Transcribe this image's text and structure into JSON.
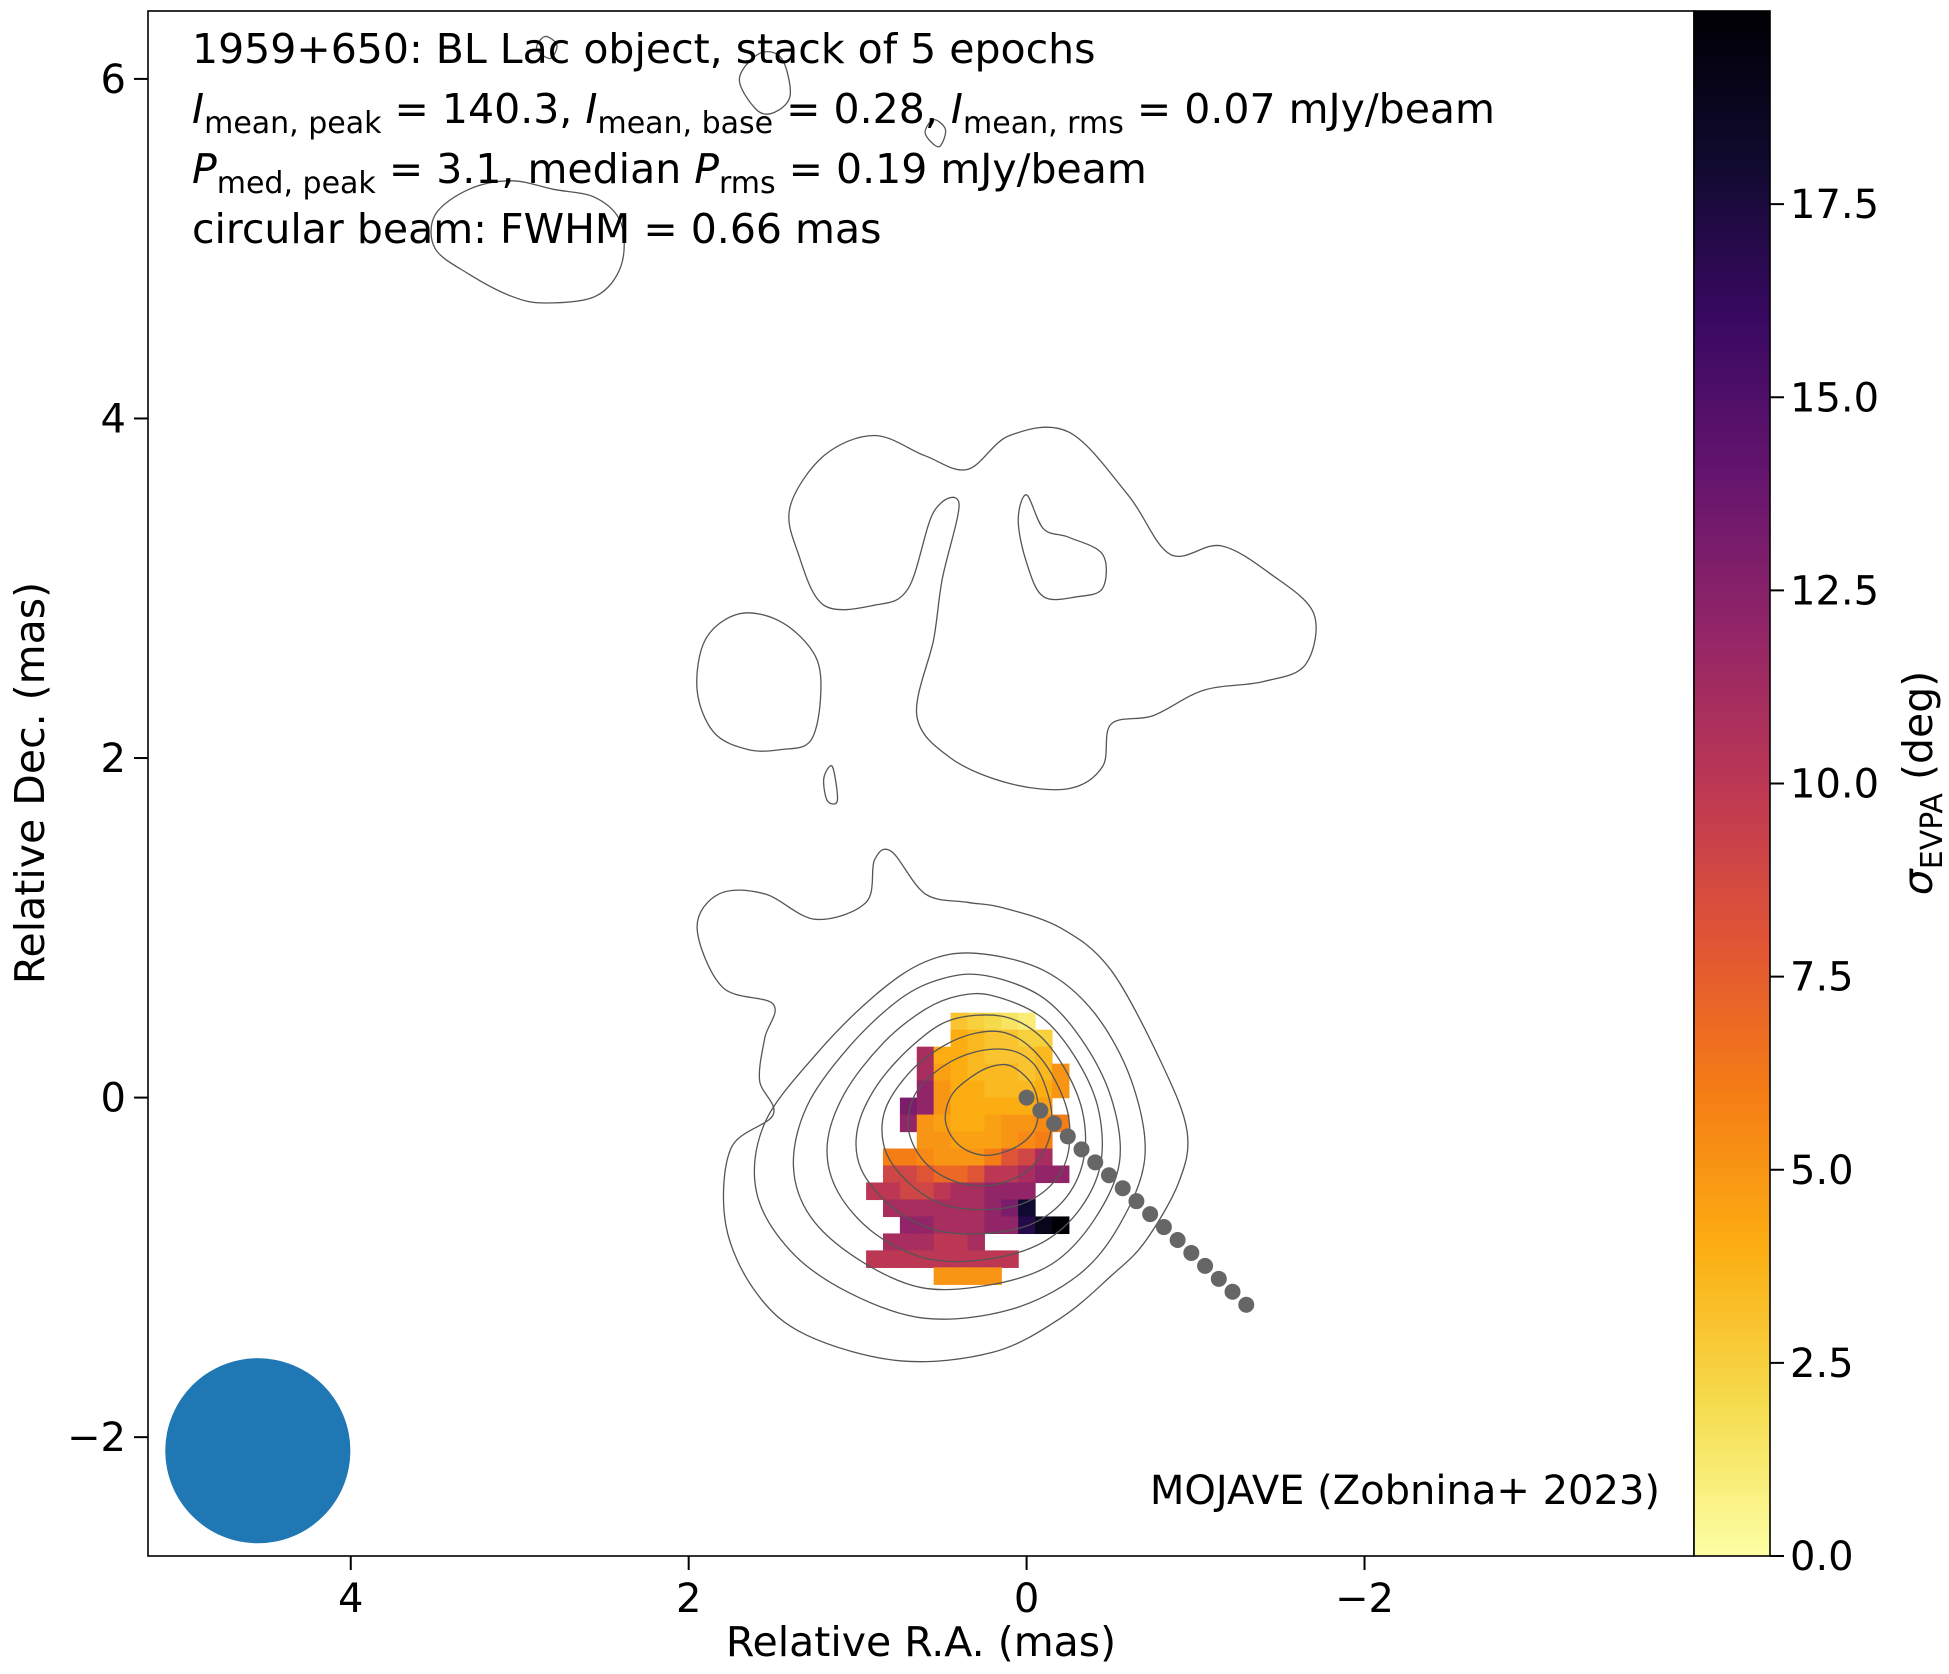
{
  "chart_data": {
    "type": "heatmap",
    "title_lines": [
      {
        "parts": [
          {
            "t": "1959+650: BL Lac object, stack of 5 epochs"
          }
        ]
      },
      {
        "parts": [
          {
            "t": "I",
            "it": true
          },
          {
            "t": "mean, peak",
            "sub": true
          },
          {
            "t": " = 140.3, "
          },
          {
            "t": "I",
            "it": true
          },
          {
            "t": "mean, base",
            "sub": true
          },
          {
            "t": " = 0.28, "
          },
          {
            "t": "I",
            "it": true
          },
          {
            "t": "mean, rms",
            "sub": true
          },
          {
            "t": " = 0.07 mJy/beam"
          }
        ]
      },
      {
        "parts": [
          {
            "t": "P",
            "it": true
          },
          {
            "t": "med, peak",
            "sub": true
          },
          {
            "t": " = 3.1, median "
          },
          {
            "t": "P",
            "it": true
          },
          {
            "t": "rms",
            "sub": true
          },
          {
            "t": " = 0.19 mJy/beam"
          }
        ]
      },
      {
        "parts": [
          {
            "t": "circular beam: FWHM = 0.66 mas"
          }
        ]
      }
    ],
    "xlabel": "Relative R.A. (mas)",
    "ylabel": "Relative Dec. (mas)",
    "xlim": [
      5.2,
      -3.95
    ],
    "ylim": [
      -2.7,
      6.4
    ],
    "xticks": [
      4,
      2,
      0,
      -2
    ],
    "xtick_labels": [
      "4",
      "2",
      "0",
      "−2"
    ],
    "yticks": [
      -2,
      0,
      2,
      4,
      6
    ],
    "ytick_labels": [
      "−2",
      "0",
      "2",
      "4",
      "6"
    ],
    "colorbar": {
      "label_main": "σ",
      "label_sub": "EVPA",
      "label_unit": " (deg)",
      "range": [
        0,
        20
      ],
      "ticks": [
        0,
        2.5,
        5,
        7.5,
        10,
        12.5,
        15,
        17.5
      ],
      "tick_labels": [
        "0.0",
        "2.5",
        "5.0",
        "7.5",
        "10.0",
        "12.5",
        "15.0",
        "17.5"
      ],
      "colormap": "inferno_r"
    },
    "credit": "MOJAVE (Zobnina+ 2023)",
    "beam": {
      "ra": 4.55,
      "dec": -2.08,
      "fwhm": 0.66,
      "color": "#1f77b4"
    },
    "contour_color": "#555555",
    "ridge_color": "#666666",
    "ridge_points": [
      [
        0,
        0
      ],
      [
        -1.3,
        -1.22
      ]
    ],
    "ridge_count": 17,
    "pixel_size": 0.1,
    "pixels": [
      {
        "dec": 0.45,
        "ra_start": 0.4,
        "values": [
          3,
          2.5,
          2,
          1.5,
          1
        ]
      },
      {
        "dec": 0.35,
        "ra_start": 0.4,
        "values": [
          4,
          3.5,
          3,
          3,
          2.5,
          2.5
        ]
      },
      {
        "dec": 0.25,
        "ra_start": 0.6,
        "values": [
          11,
          4,
          4,
          3.5,
          3,
          3,
          3,
          3.5
        ]
      },
      {
        "dec": 0.15,
        "ra_start": 0.6,
        "values": [
          11,
          4.5,
          4,
          3.5,
          3.5,
          3.5,
          3,
          3.5,
          5
        ]
      },
      {
        "dec": 0.05,
        "ra_start": 0.6,
        "values": [
          12,
          5,
          4,
          4,
          3.5,
          3.5,
          3.5,
          4,
          5
        ]
      },
      {
        "dec": -0.05,
        "ra_start": 0.7,
        "values": [
          13,
          12,
          5,
          4,
          4,
          4,
          4,
          4,
          4.5
        ]
      },
      {
        "dec": -0.15,
        "ra_start": 0.7,
        "values": [
          12,
          5,
          4.5,
          4,
          4,
          4.5,
          5,
          5,
          5.5,
          6
        ]
      },
      {
        "dec": -0.25,
        "ra_start": 0.6,
        "values": [
          5,
          5,
          4.5,
          4.5,
          4.5,
          5,
          5.5,
          6
        ]
      },
      {
        "dec": -0.35,
        "ra_start": 0.8,
        "values": [
          6,
          6,
          5.5,
          5,
          5,
          5,
          6,
          8,
          9,
          11
        ]
      },
      {
        "dec": -0.45,
        "ra_start": 0.8,
        "values": [
          9,
          9,
          8,
          7,
          7,
          8,
          10,
          10,
          11,
          12,
          12
        ]
      },
      {
        "dec": -0.55,
        "ra_start": 0.9,
        "values": [
          10,
          10,
          9,
          9,
          10,
          11,
          11,
          12,
          12,
          12
        ]
      },
      {
        "dec": -0.65,
        "ra_start": 0.8,
        "values": [
          11,
          11,
          11,
          11,
          11,
          11,
          12,
          13,
          18
        ]
      },
      {
        "dec": -0.75,
        "ra_start": 0.7,
        "values": [
          12,
          12,
          11,
          11,
          11,
          12,
          12,
          17,
          19,
          20
        ]
      },
      {
        "dec": -0.85,
        "ra_start": 0.8,
        "values": [
          11,
          11,
          11,
          10,
          10,
          11
        ]
      },
      {
        "dec": -0.95,
        "ra_start": 0.9,
        "values": [
          10,
          10,
          10,
          10,
          10,
          10,
          10,
          10,
          10
        ]
      },
      {
        "dec": -1.05,
        "ra_start": 0.5,
        "values": [
          5,
          5,
          5,
          5
        ]
      }
    ],
    "contours": [
      {
        "name": "contour-top-left-blob",
        "points": [
          [
            3.5,
            5.0
          ],
          [
            3.3,
            4.85
          ],
          [
            3.05,
            4.72
          ],
          [
            2.85,
            4.68
          ],
          [
            2.55,
            4.72
          ],
          [
            2.4,
            4.9
          ],
          [
            2.4,
            5.15
          ],
          [
            2.55,
            5.3
          ],
          [
            2.8,
            5.35
          ],
          [
            3.05,
            5.4
          ],
          [
            3.3,
            5.35
          ],
          [
            3.5,
            5.2
          ]
        ]
      },
      {
        "name": "contour-top-small-1",
        "points": [
          [
            2.9,
            6.18
          ],
          [
            2.82,
            6.12
          ],
          [
            2.78,
            6.2
          ],
          [
            2.85,
            6.25
          ]
        ]
      },
      {
        "name": "contour-top-small-2",
        "points": [
          [
            1.7,
            6.0
          ],
          [
            1.6,
            5.82
          ],
          [
            1.5,
            5.8
          ],
          [
            1.4,
            5.9
          ],
          [
            1.45,
            6.12
          ],
          [
            1.58,
            6.15
          ]
        ]
      },
      {
        "name": "contour-top-small-3",
        "points": [
          [
            0.6,
            5.68
          ],
          [
            0.52,
            5.6
          ],
          [
            0.48,
            5.7
          ],
          [
            0.55,
            5.76
          ]
        ]
      },
      {
        "name": "contour-mid-left",
        "points": [
          [
            1.9,
            2.7
          ],
          [
            1.7,
            2.85
          ],
          [
            1.45,
            2.8
          ],
          [
            1.25,
            2.6
          ],
          [
            1.22,
            2.35
          ],
          [
            1.28,
            2.1
          ],
          [
            1.45,
            2.05
          ],
          [
            1.65,
            2.05
          ],
          [
            1.85,
            2.15
          ],
          [
            1.95,
            2.4
          ]
        ]
      },
      {
        "name": "contour-mid-big",
        "points": [
          [
            1.4,
            3.48
          ],
          [
            1.2,
            3.78
          ],
          [
            0.9,
            3.9
          ],
          [
            0.6,
            3.78
          ],
          [
            0.35,
            3.7
          ],
          [
            0.1,
            3.9
          ],
          [
            -0.25,
            3.92
          ],
          [
            -0.6,
            3.55
          ],
          [
            -0.85,
            3.2
          ],
          [
            -1.15,
            3.25
          ],
          [
            -1.45,
            3.08
          ],
          [
            -1.7,
            2.85
          ],
          [
            -1.65,
            2.55
          ],
          [
            -1.4,
            2.45
          ],
          [
            -1.05,
            2.4
          ],
          [
            -0.75,
            2.25
          ],
          [
            -0.5,
            2.2
          ],
          [
            -0.45,
            1.95
          ],
          [
            -0.25,
            1.82
          ],
          [
            0.1,
            1.85
          ],
          [
            0.45,
            2.0
          ],
          [
            0.65,
            2.25
          ],
          [
            0.55,
            2.7
          ],
          [
            0.5,
            3.05
          ],
          [
            0.4,
            3.5
          ],
          [
            0.55,
            3.45
          ],
          [
            0.7,
            3.0
          ],
          [
            0.9,
            2.9
          ],
          [
            1.2,
            2.9
          ],
          [
            1.35,
            3.2
          ]
        ]
      },
      {
        "name": "contour-mid-hole",
        "points": [
          [
            0.0,
            3.55
          ],
          [
            -0.1,
            3.35
          ],
          [
            -0.25,
            3.3
          ],
          [
            -0.45,
            3.2
          ],
          [
            -0.45,
            3.0
          ],
          [
            -0.3,
            2.95
          ],
          [
            -0.1,
            2.95
          ],
          [
            0.0,
            3.15
          ],
          [
            0.05,
            3.4
          ]
        ]
      },
      {
        "name": "contour-mid-sliver",
        "points": [
          [
            1.15,
            1.95
          ],
          [
            1.12,
            1.75
          ],
          [
            1.18,
            1.75
          ],
          [
            1.2,
            1.88
          ]
        ]
      },
      {
        "name": "contour-lower-outer",
        "points": [
          [
            0.8,
            1.45
          ],
          [
            0.6,
            1.2
          ],
          [
            0.35,
            1.15
          ],
          [
            0.15,
            1.12
          ],
          [
            -0.2,
            1.0
          ],
          [
            -0.5,
            0.75
          ],
          [
            -0.8,
            0.2
          ],
          [
            -0.95,
            -0.2
          ],
          [
            -0.9,
            -0.5
          ],
          [
            -0.7,
            -0.85
          ],
          [
            -0.5,
            -1.05
          ],
          [
            -0.2,
            -1.3
          ],
          [
            0.2,
            -1.5
          ],
          [
            0.75,
            -1.55
          ],
          [
            1.3,
            -1.4
          ],
          [
            1.6,
            -1.15
          ],
          [
            1.78,
            -0.75
          ],
          [
            1.75,
            -0.3
          ],
          [
            1.5,
            -0.1
          ],
          [
            1.58,
            0.1
          ],
          [
            1.55,
            0.35
          ],
          [
            1.5,
            0.55
          ],
          [
            1.8,
            0.65
          ],
          [
            1.95,
            1.0
          ],
          [
            1.82,
            1.2
          ],
          [
            1.55,
            1.2
          ],
          [
            1.25,
            1.05
          ],
          [
            0.95,
            1.15
          ],
          [
            0.9,
            1.4
          ]
        ]
      },
      {
        "name": "contour-lower-2",
        "points": [
          [
            0.3,
            0.85
          ],
          [
            -0.1,
            0.75
          ],
          [
            -0.4,
            0.5
          ],
          [
            -0.62,
            0.1
          ],
          [
            -0.7,
            -0.35
          ],
          [
            -0.55,
            -0.75
          ],
          [
            -0.3,
            -1.05
          ],
          [
            0.1,
            -1.25
          ],
          [
            0.6,
            -1.3
          ],
          [
            1.05,
            -1.15
          ],
          [
            1.4,
            -0.9
          ],
          [
            1.6,
            -0.55
          ],
          [
            1.55,
            -0.15
          ],
          [
            1.25,
            0.25
          ],
          [
            0.9,
            0.6
          ],
          [
            0.6,
            0.8
          ]
        ]
      },
      {
        "name": "contour-lower-3",
        "points": [
          [
            0.25,
            0.72
          ],
          [
            -0.08,
            0.6
          ],
          [
            -0.32,
            0.35
          ],
          [
            -0.5,
            0.0
          ],
          [
            -0.55,
            -0.38
          ],
          [
            -0.4,
            -0.72
          ],
          [
            -0.15,
            -0.98
          ],
          [
            0.2,
            -1.1
          ],
          [
            0.62,
            -1.12
          ],
          [
            1.0,
            -0.95
          ],
          [
            1.28,
            -0.7
          ],
          [
            1.38,
            -0.4
          ],
          [
            1.3,
            -0.05
          ],
          [
            1.05,
            0.3
          ],
          [
            0.75,
            0.58
          ],
          [
            0.5,
            0.7
          ]
        ]
      },
      {
        "name": "contour-lower-4",
        "points": [
          [
            0.2,
            0.6
          ],
          [
            -0.08,
            0.48
          ],
          [
            -0.28,
            0.25
          ],
          [
            -0.42,
            -0.05
          ],
          [
            -0.44,
            -0.38
          ],
          [
            -0.32,
            -0.65
          ],
          [
            -0.1,
            -0.85
          ],
          [
            0.22,
            -0.95
          ],
          [
            0.58,
            -0.95
          ],
          [
            0.9,
            -0.8
          ],
          [
            1.12,
            -0.55
          ],
          [
            1.18,
            -0.28
          ],
          [
            1.08,
            0.02
          ],
          [
            0.85,
            0.32
          ],
          [
            0.6,
            0.52
          ],
          [
            0.4,
            0.6
          ]
        ]
      },
      {
        "name": "contour-lower-5",
        "points": [
          [
            0.15,
            0.48
          ],
          [
            -0.06,
            0.38
          ],
          [
            -0.22,
            0.18
          ],
          [
            -0.33,
            -0.08
          ],
          [
            -0.34,
            -0.35
          ],
          [
            -0.24,
            -0.58
          ],
          [
            -0.04,
            -0.74
          ],
          [
            0.24,
            -0.8
          ],
          [
            0.54,
            -0.78
          ],
          [
            0.8,
            -0.64
          ],
          [
            0.98,
            -0.42
          ],
          [
            1.0,
            -0.18
          ],
          [
            0.88,
            0.08
          ],
          [
            0.66,
            0.32
          ],
          [
            0.44,
            0.46
          ]
        ]
      },
      {
        "name": "contour-lower-6",
        "points": [
          [
            0.12,
            0.38
          ],
          [
            -0.04,
            0.28
          ],
          [
            -0.17,
            0.1
          ],
          [
            -0.25,
            -0.12
          ],
          [
            -0.24,
            -0.35
          ],
          [
            -0.14,
            -0.52
          ],
          [
            0.04,
            -0.63
          ],
          [
            0.28,
            -0.66
          ],
          [
            0.52,
            -0.62
          ],
          [
            0.72,
            -0.48
          ],
          [
            0.84,
            -0.3
          ],
          [
            0.84,
            -0.08
          ],
          [
            0.7,
            0.14
          ],
          [
            0.5,
            0.3
          ],
          [
            0.3,
            0.38
          ]
        ]
      },
      {
        "name": "contour-lower-7",
        "points": [
          [
            0.1,
            0.28
          ],
          [
            -0.04,
            0.2
          ],
          [
            -0.12,
            0.04
          ],
          [
            -0.15,
            -0.14
          ],
          [
            -0.1,
            -0.32
          ],
          [
            0.04,
            -0.46
          ],
          [
            0.25,
            -0.52
          ],
          [
            0.46,
            -0.48
          ],
          [
            0.62,
            -0.36
          ],
          [
            0.7,
            -0.18
          ],
          [
            0.66,
            0.02
          ],
          [
            0.5,
            0.18
          ],
          [
            0.3,
            0.27
          ]
        ]
      },
      {
        "name": "contour-lower-8",
        "points": [
          [
            0.08,
            0.18
          ],
          [
            -0.03,
            0.08
          ],
          [
            -0.07,
            -0.06
          ],
          [
            -0.04,
            -0.2
          ],
          [
            0.08,
            -0.3
          ],
          [
            0.25,
            -0.34
          ],
          [
            0.4,
            -0.28
          ],
          [
            0.48,
            -0.14
          ],
          [
            0.44,
            0.02
          ],
          [
            0.3,
            0.14
          ],
          [
            0.18,
            0.19
          ]
        ]
      }
    ]
  }
}
